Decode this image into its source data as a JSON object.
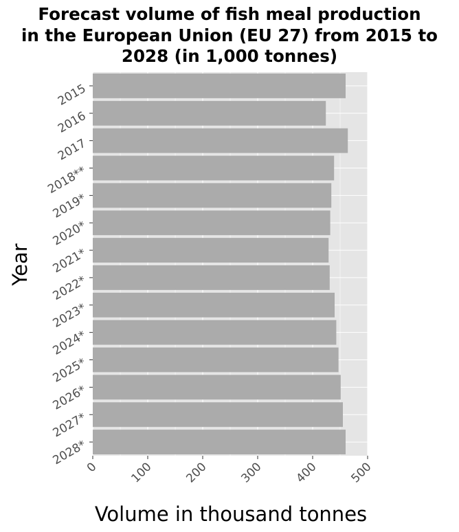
{
  "chart_data": {
    "type": "bar",
    "orientation": "horizontal",
    "title_lines": [
      "Forecast volume of fish meal production",
      "in the European Union (EU 27) from 2015 to",
      "2028 (in 1,000 tonnes)"
    ],
    "xlabel": "Volume in thousand tonnes",
    "ylabel": "Year",
    "categories": [
      "2015",
      "2016",
      "2017",
      "2018**",
      "2019*",
      "2020*",
      "2021*",
      "2022*",
      "2023*",
      "2024*",
      "2025*",
      "2026*",
      "2027*",
      "2028*"
    ],
    "values": [
      460,
      424,
      464,
      439,
      434,
      432,
      429,
      431,
      440,
      443,
      447,
      451,
      455,
      460
    ],
    "xticks": [
      "0",
      "100",
      "200",
      "300",
      "400",
      "500"
    ],
    "xlim": [
      0,
      500
    ],
    "grid": true,
    "colors": {
      "bar": "#ababab",
      "panel": "#e5e5e5",
      "grid": "#ffffff",
      "tick_text": "#4d4d4d"
    }
  }
}
